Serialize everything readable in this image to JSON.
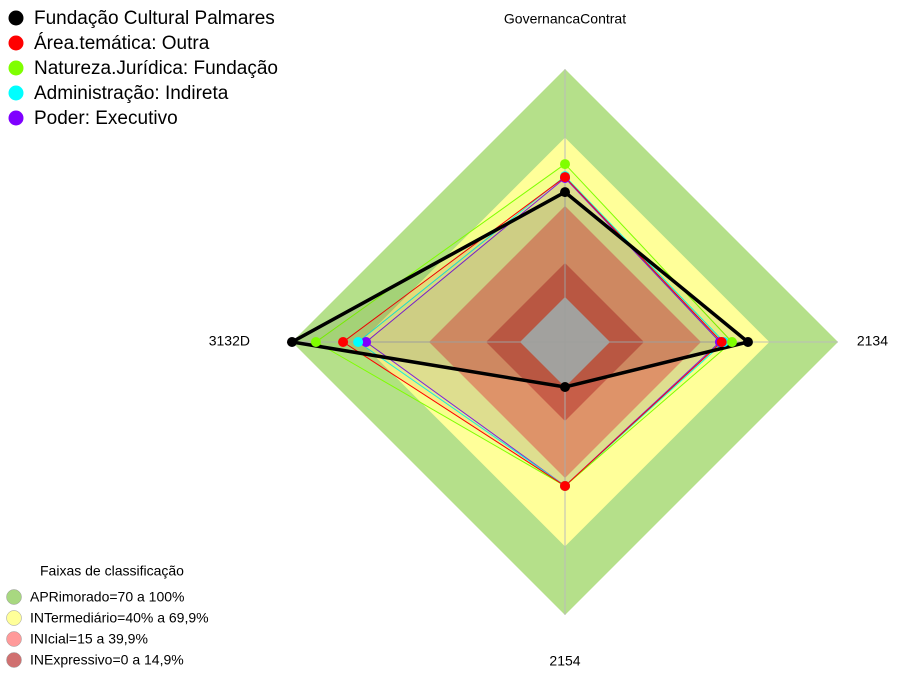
{
  "chart_data": {
    "type": "radar",
    "axes": [
      "GovernancaContrat",
      "2134",
      "2154",
      "3132D"
    ],
    "rlim": [
      0,
      100
    ],
    "series": [
      {
        "name": "Fundação Cultural Palmares",
        "color": "#000000",
        "values": [
          46,
          60.5,
          0,
          100
        ]
      },
      {
        "name": "Área.temática: Outra",
        "color": "#ff0000",
        "values": [
          52.6,
          49,
          43.4,
          77.6
        ]
      },
      {
        "name": "Natureza.Jurídica: Fundação",
        "color": "#7fff00",
        "values": [
          58.3,
          53.5,
          43.4,
          89.5
        ]
      },
      {
        "name": "Administração: Indireta",
        "color": "#00ffff",
        "values": [
          53,
          50,
          43.4,
          71
        ]
      },
      {
        "name": "Poder: Executivo",
        "color": "#7f00ff",
        "values": [
          52.2,
          48.2,
          43.4,
          67.5
        ]
      }
    ],
    "legend_title": "Faixas de classificação",
    "bands": [
      {
        "label": "APRimorado=70 a 100%",
        "max": 100,
        "color": "#b5e08a",
        "legend_color": "#a8d880"
      },
      {
        "label": "INTermediário=40% a 69,9%",
        "max": 69.9,
        "color": "#ffff99",
        "legend_color": "#ffff99"
      },
      {
        "label": "INIcial=15 a 39,9%",
        "max": 39.9,
        "color": "#ff9d66",
        "legend_color": "#ff9a9a"
      },
      {
        "label": "INExpressivo=0 a 14,9%",
        "max": 14.9,
        "color": "#e0553a",
        "legend_color": "#d07070"
      }
    ]
  }
}
